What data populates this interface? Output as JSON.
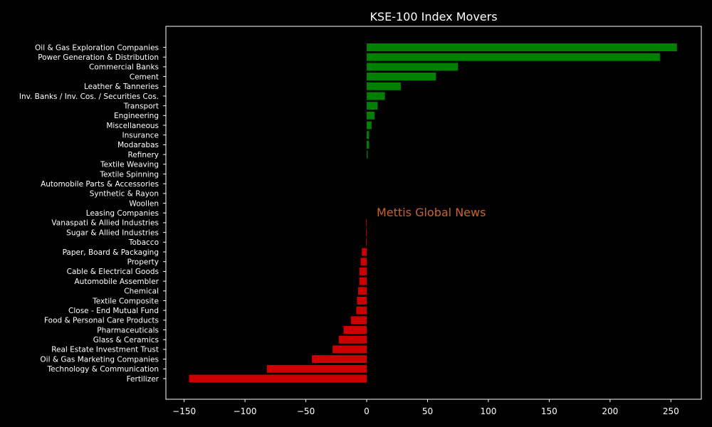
{
  "chart_data": {
    "type": "bar",
    "orientation": "horizontal",
    "title": "KSE-100 Index Movers",
    "xlabel": "",
    "ylabel": "",
    "xlim": [
      -165,
      275
    ],
    "xticks": [
      -150,
      -100,
      -50,
      0,
      50,
      100,
      150,
      200,
      250
    ],
    "xtick_labels": [
      "−150",
      "−100",
      "−50",
      "0",
      "50",
      "100",
      "150",
      "200",
      "250"
    ],
    "grid": false,
    "watermark": "Mettis Global News",
    "colors": {
      "positive": "#008000",
      "negative": "#cc0000",
      "background": "#000000",
      "text": "#ffffff",
      "watermark": "#c8642a"
    },
    "categories": [
      "Oil & Gas Exploration Companies",
      "Power Generation & Distribution",
      "Commercial Banks",
      "Cement",
      "Leather & Tanneries",
      "Inv. Banks / Inv. Cos. / Securities Cos.",
      "Transport",
      "Engineering",
      "Miscellaneous",
      "Insurance",
      "Modarabas",
      "Refinery",
      "Textile Weaving",
      "Textile Spinning",
      "Automobile Parts & Accessories",
      "Synthetic & Rayon",
      "Woollen",
      "Leasing Companies",
      "Vanaspati & Allied Industries",
      "Sugar & Allied Industries",
      "Tobacco",
      "Paper, Board & Packaging",
      "Property",
      "Cable & Electrical Goods",
      "Automobile Assembler",
      "Chemical",
      "Textile Composite",
      "Close - End Mutual Fund",
      "Food & Personal Care Products",
      "Pharmaceuticals",
      "Glass & Ceramics",
      "Real Estate Investment Trust",
      "Oil & Gas Marketing Companies",
      "Technology & Communication",
      "Fertilizer"
    ],
    "values": [
      255,
      241,
      75,
      57,
      28,
      15,
      9,
      6.5,
      4,
      2,
      2,
      0.8,
      0,
      0,
      0,
      0,
      0,
      0,
      -0.5,
      -0.5,
      -0.5,
      -4,
      -5,
      -6,
      -6,
      -7,
      -8,
      -8.5,
      -13,
      -19,
      -23,
      -28,
      -45,
      -82,
      -146
    ]
  }
}
